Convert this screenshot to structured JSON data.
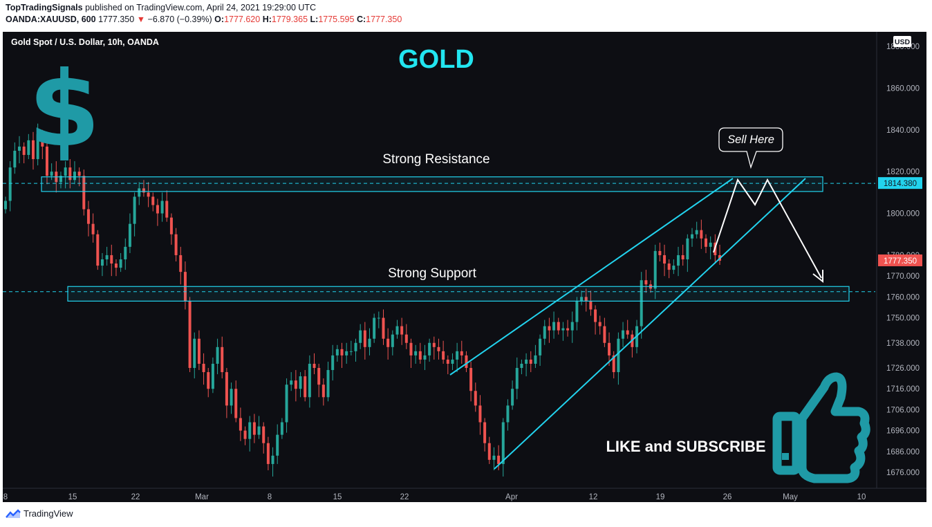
{
  "header": {
    "publisher": "TopTradingSignals",
    "published_text": "published on TradingView.com, April 24, 2021 19:29:00 UTC",
    "symbol": "OANDA:XAUUSD, 600",
    "last": "1777.350",
    "change": "−6.870 (−0.39%)",
    "o_label": "O:",
    "o": "1777.620",
    "h_label": "H:",
    "h": "1779.365",
    "l_label": "L:",
    "l": "1775.595",
    "c_label": "C:",
    "c": "1777.350"
  },
  "footer": {
    "brand": "TradingView"
  },
  "colors": {
    "background": "#0d0e13",
    "up": "#26a69a",
    "down": "#ef5350",
    "annotation": "#22d3ee",
    "gold_title": "#22e5f0",
    "dollar": "#1f9aa6",
    "price_tag": "#ef5350"
  },
  "icons": [
    "dollar-sign-icon",
    "thumbs-up-icon",
    "tradingview-logo-icon"
  ],
  "chart_data": {
    "type": "candlestick",
    "instrument_label": "Gold Spot / U.S. Dollar, 10h, OANDA",
    "currency": "USD",
    "title": "GOLD",
    "x_ticks": [
      "8",
      "15",
      "22",
      "Mar",
      "8",
      "15",
      "22",
      "Apr",
      "12",
      "19",
      "26",
      "May",
      "10"
    ],
    "y_ticks": [
      "1880.000",
      "1860.000",
      "1840.000",
      "1820.000",
      "1800.000",
      "1780.000",
      "1770.000",
      "1760.000",
      "1750.000",
      "1738.000",
      "1726.000",
      "1716.000",
      "1706.000",
      "1696.000",
      "1686.000",
      "1676.000"
    ],
    "ylim": [
      1672,
      1884
    ],
    "price_line": 1814.38,
    "price_line_label": "1814.380",
    "last_price_label": "1777.350",
    "support_line": 1762.5,
    "resistance_zone": [
      1810.5,
      1817.5
    ],
    "support_zone": [
      1758,
      1765
    ],
    "annotations": {
      "resistance": "Strong Resistance",
      "support": "Strong Support",
      "callout": "Sell Here",
      "cta": "LIKE and SUBSCRIBE"
    },
    "closes": [
      1806,
      1822,
      1830,
      1832,
      1828,
      1835,
      1826,
      1838,
      1832,
      1818,
      1820,
      1815,
      1818,
      1822,
      1816,
      1820,
      1818,
      1802,
      1795,
      1790,
      1775,
      1778,
      1780,
      1776,
      1774,
      1778,
      1784,
      1795,
      1808,
      1812,
      1810,
      1808,
      1804,
      1800,
      1806,
      1798,
      1790,
      1780,
      1772,
      1758,
      1726,
      1740,
      1728,
      1724,
      1716,
      1728,
      1736,
      1724,
      1708,
      1716,
      1702,
      1696,
      1692,
      1700,
      1694,
      1698,
      1690,
      1680,
      1684,
      1694,
      1700,
      1718,
      1720,
      1716,
      1722,
      1712,
      1728,
      1726,
      1718,
      1712,
      1725,
      1732,
      1735,
      1732,
      1734,
      1734,
      1738,
      1744,
      1736,
      1740,
      1750,
      1750,
      1740,
      1736,
      1742,
      1746,
      1742,
      1738,
      1732,
      1734,
      1730,
      1732,
      1738,
      1736,
      1734,
      1730,
      1728,
      1730,
      1734,
      1732,
      1726,
      1715,
      1708,
      1700,
      1690,
      1682,
      1684,
      1680,
      1700,
      1708,
      1716,
      1726,
      1728,
      1730,
      1728,
      1732,
      1740,
      1746,
      1744,
      1748,
      1744,
      1745,
      1744,
      1748,
      1758,
      1760,
      1758,
      1754,
      1748,
      1746,
      1738,
      1732,
      1724,
      1740,
      1744,
      1742,
      1736,
      1746,
      1768,
      1766,
      1764,
      1782,
      1780,
      1776,
      1773,
      1775,
      1780,
      1778,
      1788,
      1790,
      1792,
      1788,
      1784,
      1786,
      1780,
      1777.35
    ]
  }
}
